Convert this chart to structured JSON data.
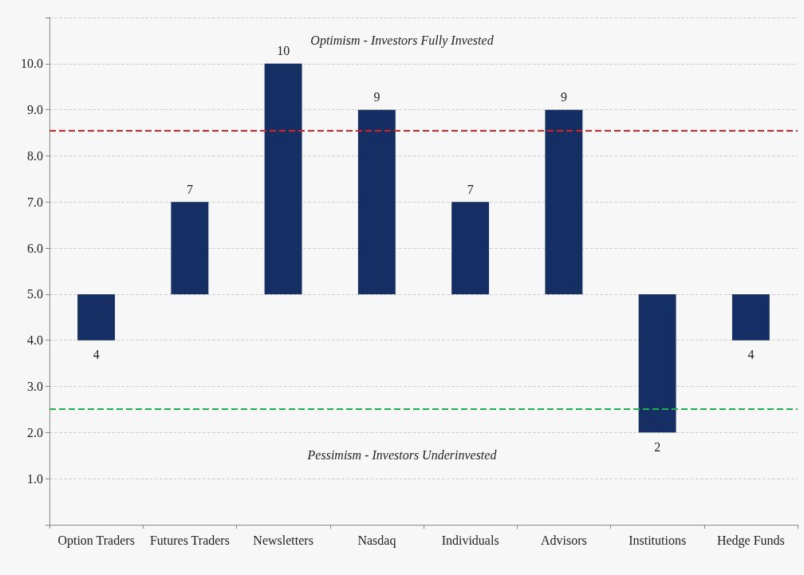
{
  "chart_data": {
    "type": "bar",
    "categories": [
      "Option Traders",
      "Futures Traders",
      "Newsletters",
      "Nasdaq",
      "Individuals",
      "Advisors",
      "Institutions",
      "Hedge Funds"
    ],
    "values": [
      -1,
      2,
      5,
      4,
      2,
      4,
      -3,
      -1
    ],
    "base": [
      5,
      5,
      5,
      5,
      5,
      5,
      5,
      5
    ],
    "value_labels": [
      "4",
      "7",
      "10",
      "9",
      "7",
      "9",
      "2",
      "4"
    ],
    "color": "#152f65",
    "ylim": [
      0,
      11
    ],
    "yticks": [
      {
        "value": 0,
        "label": null
      },
      {
        "value": 1,
        "label": "1.0"
      },
      {
        "value": 2,
        "label": "2.0"
      },
      {
        "value": 3,
        "label": "3.0"
      },
      {
        "value": 4,
        "label": "4.0"
      },
      {
        "value": 5,
        "label": "5.0"
      },
      {
        "value": 6,
        "label": "6.0"
      },
      {
        "value": 7,
        "label": "7.0"
      },
      {
        "value": 8,
        "label": "8.0"
      },
      {
        "value": 9,
        "label": "9.0"
      },
      {
        "value": 10,
        "label": "10.0"
      },
      {
        "value": 11,
        "label": null
      }
    ],
    "grid": "y",
    "ref_lines": [
      {
        "axis": "y",
        "value": 8.55,
        "color": "#e02020",
        "line_style": "dashed"
      },
      {
        "axis": "y",
        "value": 2.52,
        "color": "#20b050",
        "line_style": "dashed"
      }
    ],
    "annotations": [
      "Optimism - Investors Fully Invested",
      "Pessimism - Investors Underinvested"
    ]
  }
}
